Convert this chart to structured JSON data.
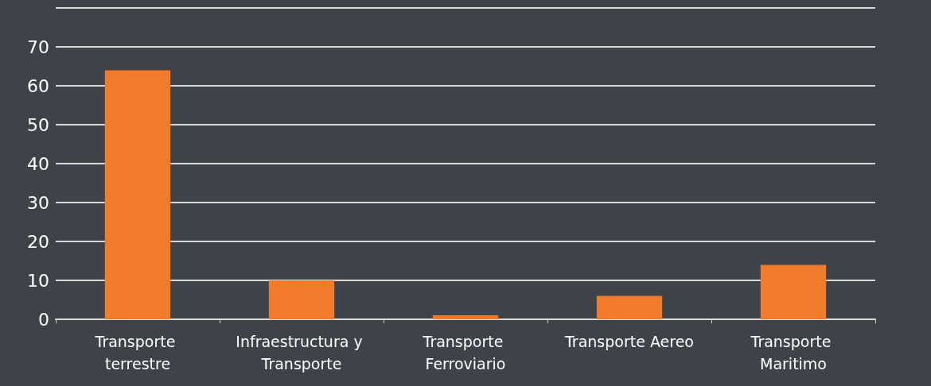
{
  "chart_data": {
    "type": "bar",
    "categories": [
      "Transporte terrestre",
      "Infraestructura y Transporte",
      "Transporte Ferroviario",
      "Transporte Aereo",
      "Transporte Maritimo"
    ],
    "values": [
      64,
      10,
      1,
      6,
      14
    ],
    "color": "#f07b2a",
    "ylim": [
      0,
      80
    ],
    "yticks": [
      0,
      10,
      20,
      30,
      40,
      50,
      60,
      70,
      {
        "value": 80,
        "label": null
      }
    ],
    "grid": "y"
  }
}
